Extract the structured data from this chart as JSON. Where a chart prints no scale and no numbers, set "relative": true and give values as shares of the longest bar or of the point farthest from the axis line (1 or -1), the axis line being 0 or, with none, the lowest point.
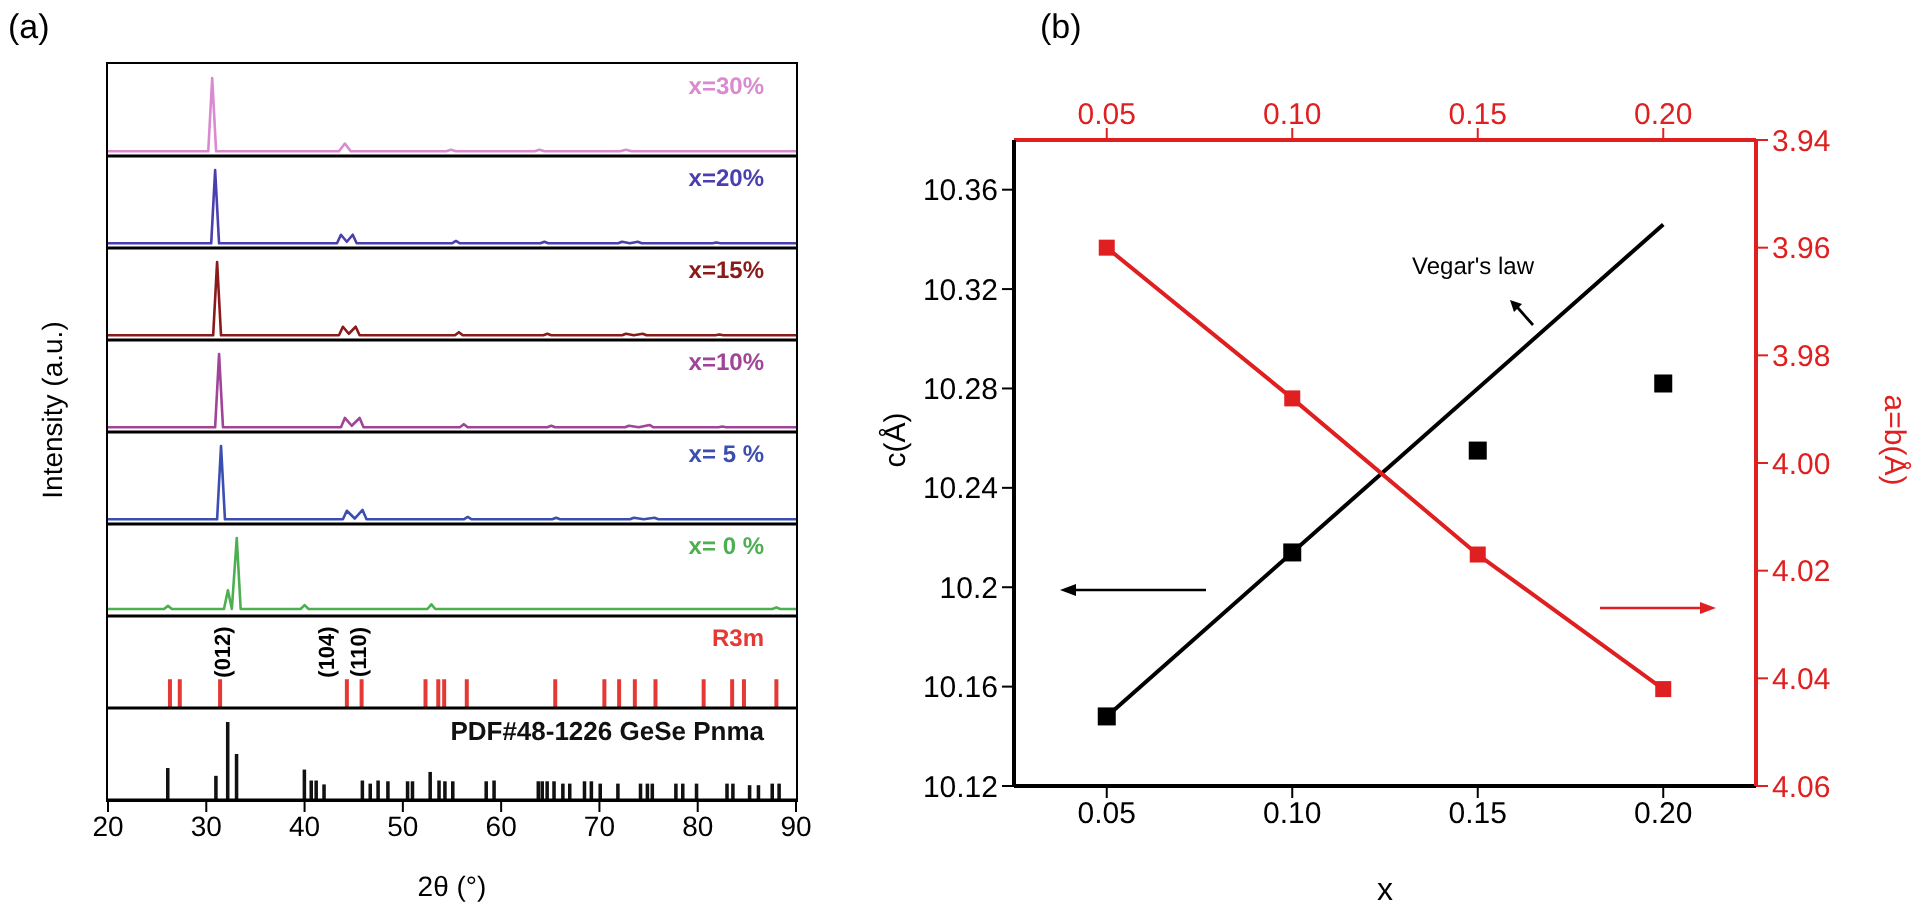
{
  "chart_data": [
    {
      "type": "line",
      "title": "(a)",
      "relative": true,
      "xlim": [
        20,
        90
      ],
      "tick_labels": false,
      "legend": false,
      "grid": false,
      "marker": "none",
      "series": [
        {
          "name": "x=30%",
          "color": "#d98ad0",
          "x": [
            20,
            30.2,
            30.6,
            31.0,
            43.5,
            44.1,
            44.7,
            54.4,
            54.9,
            55.4,
            63.4,
            63.9,
            64.4,
            72.1,
            72.7,
            73.3,
            90
          ],
          "values": [
            0.06,
            0.06,
            1,
            0.06,
            0.06,
            0.16,
            0.06,
            0.06,
            0.08,
            0.06,
            0.06,
            0.08,
            0.06,
            0.06,
            0.08,
            0.06,
            0.06
          ]
        }
      ]
    },
    {
      "type": "line",
      "relative": true,
      "xlim": [
        20,
        90
      ],
      "tick_labels": false,
      "legend": false,
      "grid": false,
      "marker": "none",
      "series": [
        {
          "name": "x=20%",
          "color": "#4b3fb0",
          "x": [
            20,
            30.5,
            30.9,
            31.3,
            43.3,
            43.7,
            44.3,
            44.9,
            45.3,
            55.0,
            55.4,
            55.8,
            64.0,
            64.4,
            64.8,
            71.9,
            72.3,
            73.1,
            73.9,
            74.3,
            81.5,
            81.9,
            82.3,
            90
          ],
          "values": [
            0.06,
            0.06,
            1,
            0.06,
            0.06,
            0.17,
            0.08,
            0.17,
            0.06,
            0.06,
            0.09,
            0.06,
            0.06,
            0.08,
            0.06,
            0.06,
            0.08,
            0.06,
            0.08,
            0.06,
            0.06,
            0.07,
            0.06,
            0.06
          ]
        }
      ]
    },
    {
      "type": "line",
      "relative": true,
      "xlim": [
        20,
        90
      ],
      "tick_labels": false,
      "legend": false,
      "grid": false,
      "marker": "none",
      "series": [
        {
          "name": "x=15%",
          "color": "#8b1a1a",
          "x": [
            20,
            30.7,
            31.1,
            31.5,
            43.5,
            43.9,
            44.5,
            45.2,
            45.6,
            55.3,
            55.7,
            56.1,
            64.3,
            64.7,
            65.1,
            72.3,
            72.7,
            73.5,
            74.4,
            74.8,
            81.8,
            82.2,
            82.6,
            90
          ],
          "values": [
            0.06,
            0.06,
            1,
            0.06,
            0.06,
            0.17,
            0.08,
            0.17,
            0.06,
            0.06,
            0.1,
            0.06,
            0.06,
            0.08,
            0.06,
            0.06,
            0.08,
            0.06,
            0.08,
            0.06,
            0.06,
            0.07,
            0.06,
            0.06
          ]
        }
      ]
    },
    {
      "type": "line",
      "relative": true,
      "xlim": [
        20,
        90
      ],
      "tick_labels": false,
      "legend": false,
      "grid": false,
      "marker": "none",
      "ylabel": "Intensity (a.u.)",
      "series": [
        {
          "name": "x=10%",
          "color": "#a0449a",
          "x": [
            20,
            30.9,
            31.3,
            31.7,
            43.7,
            44.1,
            44.8,
            45.6,
            46.0,
            55.8,
            56.2,
            56.6,
            64.7,
            65.1,
            65.5,
            72.6,
            73.0,
            74.0,
            75.1,
            75.5,
            82.1,
            82.5,
            82.9,
            90
          ],
          "values": [
            0.06,
            0.06,
            1,
            0.06,
            0.06,
            0.18,
            0.08,
            0.18,
            0.06,
            0.06,
            0.1,
            0.06,
            0.06,
            0.08,
            0.06,
            0.06,
            0.08,
            0.06,
            0.09,
            0.06,
            0.06,
            0.07,
            0.06,
            0.06
          ]
        }
      ]
    },
    {
      "type": "line",
      "relative": true,
      "xlim": [
        20,
        90
      ],
      "tick_labels": false,
      "legend": false,
      "grid": false,
      "marker": "none",
      "series": [
        {
          "name": "x= 5 %",
          "color": "#3b4fb0",
          "x": [
            20,
            31.1,
            31.5,
            31.9,
            43.9,
            44.3,
            45.1,
            45.9,
            46.3,
            56.2,
            56.6,
            57.0,
            65.2,
            65.6,
            66.0,
            73.1,
            73.5,
            74.5,
            75.6,
            76.0,
            90
          ],
          "values": [
            0.06,
            0.06,
            1,
            0.06,
            0.06,
            0.17,
            0.07,
            0.18,
            0.06,
            0.06,
            0.09,
            0.06,
            0.06,
            0.08,
            0.06,
            0.06,
            0.08,
            0.06,
            0.08,
            0.06,
            0.06
          ]
        }
      ]
    },
    {
      "type": "line",
      "relative": true,
      "xlim": [
        20,
        90
      ],
      "tick_labels": false,
      "legend": false,
      "grid": false,
      "marker": "none",
      "series": [
        {
          "name": "x= 0 %",
          "color": "#4caf50",
          "x": [
            20,
            25.7,
            26.1,
            26.5,
            31.8,
            32.2,
            32.6,
            33.1,
            33.5,
            39.6,
            40.0,
            40.4,
            52.5,
            52.9,
            53.3,
            87.6,
            88.0,
            88.4,
            90
          ],
          "values": [
            0.09,
            0.09,
            0.13,
            0.09,
            0.09,
            0.33,
            0.09,
            1,
            0.09,
            0.09,
            0.14,
            0.09,
            0.09,
            0.15,
            0.09,
            0.09,
            0.11,
            0.09,
            0.09
          ]
        }
      ]
    },
    {
      "type": "bar",
      "relative": true,
      "xlim": [
        20,
        90
      ],
      "tick_labels": false,
      "legend": false,
      "grid": false,
      "annotations": [
        "(012)",
        "(104)",
        "(110)"
      ],
      "series": [
        {
          "name": "R3m",
          "color": "#e53935",
          "x": [
            26.4,
            27.4,
            31.5,
            44.4,
            45.9,
            52.4,
            53.7,
            54.3,
            56.6,
            65.6,
            70.6,
            72.1,
            73.7,
            75.8,
            80.7,
            83.6,
            84.8,
            88.1
          ],
          "values": [
            1,
            1,
            1,
            1,
            1,
            1,
            1,
            1,
            1,
            1,
            1,
            1,
            1,
            1,
            1,
            1,
            1,
            1
          ]
        }
      ]
    },
    {
      "type": "bar",
      "relative": true,
      "xlabel": "2θ (°)",
      "xlim": [
        20,
        90
      ],
      "xticks": [
        20,
        30,
        40,
        50,
        60,
        70,
        80,
        90
      ],
      "tick_labels": "x",
      "legend": false,
      "grid": false,
      "series": [
        {
          "name": "PDF#48-1226 GeSe Pnma",
          "color": "#111111",
          "x": [
            26.1,
            31.0,
            32.2,
            33.1,
            40.0,
            40.7,
            41.2,
            42.0,
            45.9,
            46.7,
            47.5,
            48.5,
            50.5,
            51.0,
            52.8,
            53.7,
            54.3,
            55.1,
            58.5,
            59.3,
            63.8,
            64.2,
            64.7,
            65.4,
            66.3,
            67.0,
            68.5,
            69.2,
            70.1,
            71.9,
            74.2,
            74.9,
            75.4,
            77.8,
            78.5,
            79.9,
            83.0,
            83.6,
            85.3,
            86.2,
            87.6,
            88.3
          ],
          "values": [
            0.41,
            0.31,
            1,
            0.59,
            0.39,
            0.25,
            0.25,
            0.2,
            0.25,
            0.21,
            0.25,
            0.24,
            0.24,
            0.24,
            0.36,
            0.25,
            0.24,
            0.24,
            0.24,
            0.25,
            0.24,
            0.24,
            0.24,
            0.24,
            0.21,
            0.21,
            0.24,
            0.24,
            0.21,
            0.21,
            0.21,
            0.21,
            0.21,
            0.21,
            0.21,
            0.21,
            0.21,
            0.21,
            0.19,
            0.19,
            0.21,
            0.21
          ]
        }
      ]
    },
    {
      "type": "scatter",
      "title": "(b)",
      "xlabel": "x",
      "ylabel": "c(Å)",
      "y2label": "a=b(Å)",
      "xlim": [
        0.025,
        0.225
      ],
      "xticks": [
        {
          "value": 0.05,
          "label": "0.05"
        },
        {
          "value": 0.1,
          "label": "0.10"
        },
        {
          "value": 0.15,
          "label": "0.15"
        },
        {
          "value": 0.2,
          "label": "0.20"
        }
      ],
      "x2lim": [
        0.025,
        0.225
      ],
      "x2ticks": [
        {
          "value": 0.05,
          "label": "0.05"
        },
        {
          "value": 0.1,
          "label": "0.10"
        },
        {
          "value": 0.15,
          "label": "0.15"
        },
        {
          "value": 0.2,
          "label": "0.20"
        }
      ],
      "ylim": [
        10.12,
        10.38
      ],
      "yticks": [
        10.12,
        10.16,
        10.2,
        10.24,
        10.28,
        10.32,
        10.36
      ],
      "y2lim": [
        4.06,
        3.94
      ],
      "y2ticks": [
        {
          "value": 3.94,
          "label": "3.94"
        },
        {
          "value": 3.96,
          "label": "3.96"
        },
        {
          "value": 3.98,
          "label": "3.98"
        },
        {
          "value": 4.0,
          "label": "4.00"
        },
        {
          "value": 4.02,
          "label": "4.02"
        },
        {
          "value": 4.04,
          "label": "4.04"
        },
        {
          "value": 4.06,
          "label": "4.06"
        }
      ],
      "legend": false,
      "grid": false,
      "annotations": [
        "Vegar's law"
      ],
      "series": [
        {
          "color": "#000000",
          "marker": "square",
          "x": [
            0.05,
            0.1,
            0.15,
            0.2
          ],
          "values": [
            10.148,
            10.214,
            10.255,
            10.282
          ]
        },
        {
          "type": "line",
          "color": "#000000",
          "marker": "none",
          "x": [
            0.05,
            0.2
          ],
          "values": [
            10.148,
            10.346
          ]
        },
        {
          "type": "line",
          "axis": "y2",
          "color": "#e02020",
          "marker": "square",
          "x": [
            0.05,
            0.1,
            0.15,
            0.2
          ],
          "values": [
            3.96,
            3.988,
            4.017,
            4.042
          ]
        }
      ]
    }
  ]
}
